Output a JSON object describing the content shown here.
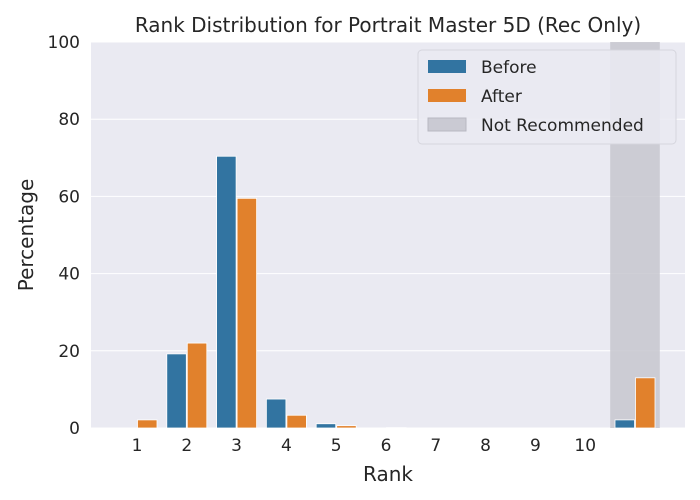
{
  "chart_data": {
    "type": "bar",
    "title": "Rank Distribution for Portrait Master 5D (Rec Only)",
    "xlabel": "Rank",
    "ylabel": "Percentage",
    "ylim": [
      0,
      100
    ],
    "yticks": [
      0,
      20,
      40,
      60,
      80,
      100
    ],
    "categories": [
      "1",
      "2",
      "3",
      "4",
      "5",
      "6",
      "7",
      "8",
      "9",
      "10",
      ""
    ],
    "series": [
      {
        "name": "Before",
        "color": "#3274a1",
        "values": [
          0,
          19.2,
          70.4,
          7.5,
          1.1,
          0,
          0,
          0,
          0,
          0,
          2.1
        ]
      },
      {
        "name": "After",
        "color": "#e1812c",
        "values": [
          2.1,
          22.0,
          59.5,
          3.3,
          0.6,
          0.1,
          0,
          0,
          0,
          0,
          13.0
        ]
      }
    ],
    "shaded_region": {
      "name": "Not Recommended",
      "color": "#c7c7cf",
      "category_index": 10
    },
    "grid": true,
    "legend_position": "top-right"
  }
}
